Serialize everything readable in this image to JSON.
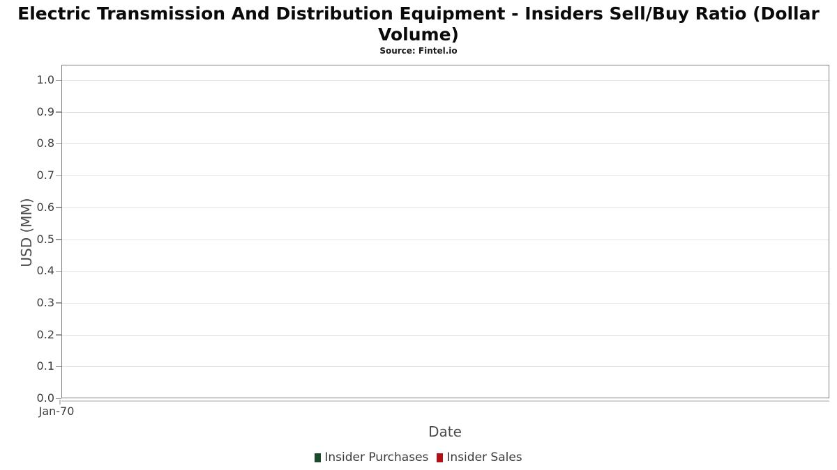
{
  "chart_data": {
    "type": "line",
    "title": "Electric Transmission And Distribution Equipment - Insiders Sell/Buy Ratio (Dollar Volume)",
    "subtitle": "Source: Fintel.io",
    "xlabel": "Date",
    "ylabel": "USD (MM)",
    "x_ticks": [
      "Jan-70"
    ],
    "y_ticks": [
      "0.0",
      "0.1",
      "0.2",
      "0.3",
      "0.4",
      "0.5",
      "0.6",
      "0.7",
      "0.8",
      "0.9",
      "1.0"
    ],
    "ylim": [
      0.0,
      1.05
    ],
    "grid": "horizontal",
    "legend_position": "bottom-center",
    "plot_empty": true,
    "series": [
      {
        "name": "Insider Purchases",
        "color": "#1d4a2c",
        "values": []
      },
      {
        "name": "Insider Sales",
        "color": "#b11116",
        "values": []
      }
    ]
  },
  "colors": {
    "grid": "#e3e3e3",
    "plot_border": "#7f7f7f",
    "tick": "#999999",
    "axis_line": "#d2d2d2",
    "tick_label": "#3d3d3d",
    "axis_title": "#4a4a4a",
    "title": "#0a0a0a",
    "legend_text": "#3a3a3a"
  }
}
